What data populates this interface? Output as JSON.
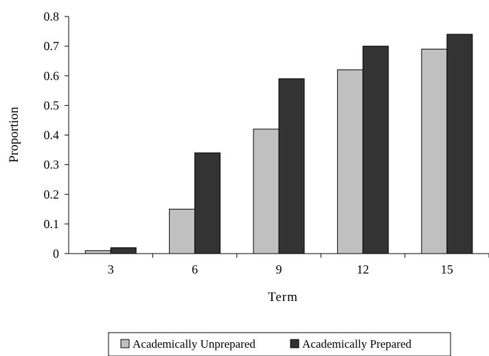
{
  "chart_data": {
    "type": "bar",
    "categories": [
      "3",
      "6",
      "9",
      "12",
      "15"
    ],
    "series": [
      {
        "name": "Academically Unprepared",
        "values": [
          0.01,
          0.15,
          0.42,
          0.62,
          0.69
        ],
        "color": "#c0c0c0"
      },
      {
        "name": "Academically Prepared",
        "values": [
          0.02,
          0.34,
          0.59,
          0.7,
          0.74
        ],
        "color": "#333333"
      }
    ],
    "y_ticks": [
      "0",
      "0.1",
      "0.2",
      "0.3",
      "0.4",
      "0.5",
      "0.6",
      "0.7",
      "0.8"
    ],
    "ylim": [
      0,
      0.8
    ],
    "xlabel": "Term",
    "ylabel": "Proportion",
    "grid": false,
    "legend_position": "bottom"
  }
}
